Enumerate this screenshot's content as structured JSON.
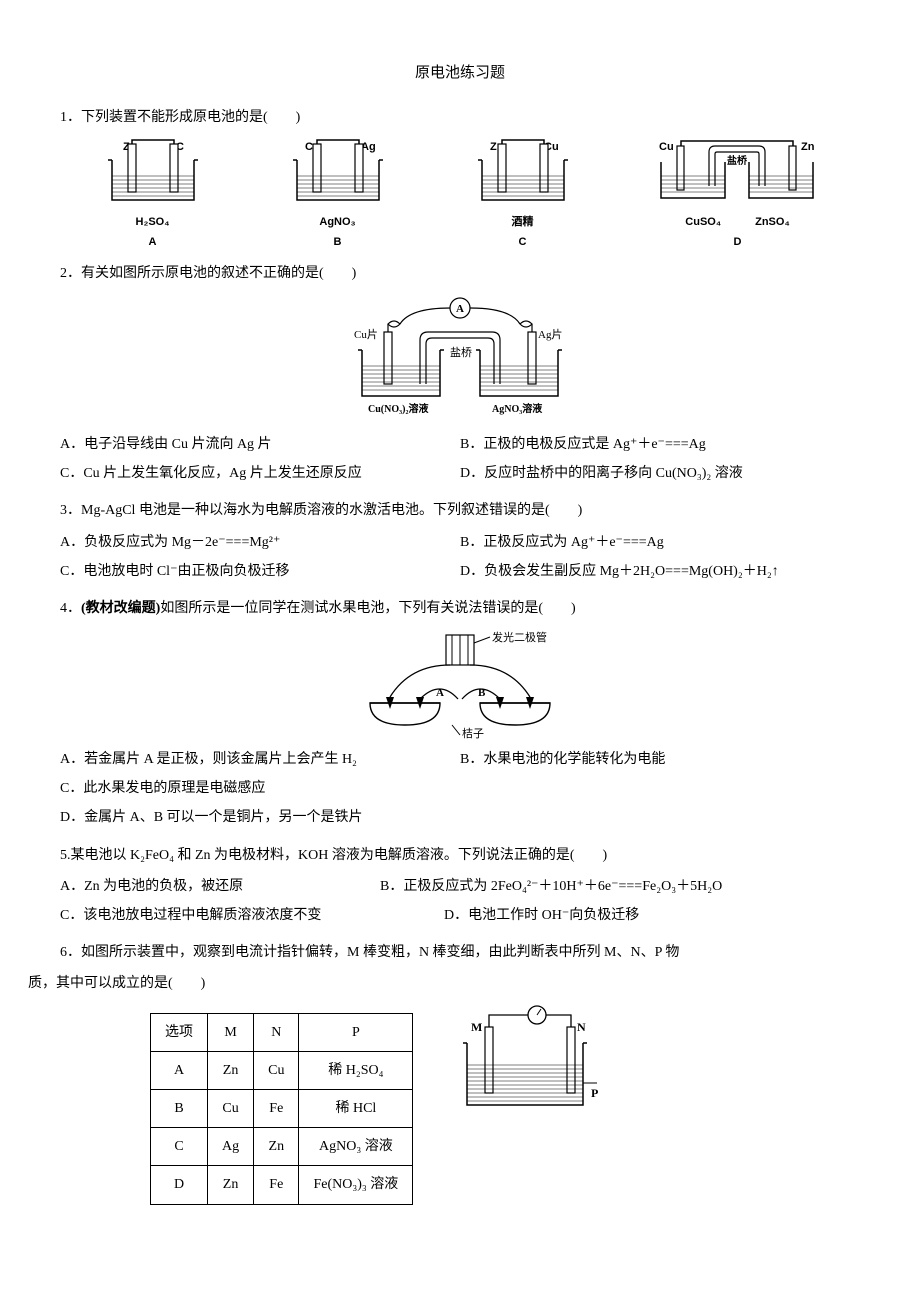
{
  "title": "原电池练习题",
  "q1": {
    "text": "1．下列装置不能形成原电池的是(　　)",
    "diagrams": {
      "a": {
        "left": "Zn",
        "right": "C",
        "solution": "H₂SO₄",
        "label": "A"
      },
      "b": {
        "left": "Cu",
        "right": "Ag",
        "solution": "AgNO₃",
        "label": "B"
      },
      "c": {
        "left": "Zn",
        "right": "Cu",
        "solution": "酒精",
        "label": "C"
      },
      "d": {
        "left_el": "Cu",
        "right_el": "Zn",
        "bridge": "盐桥",
        "left_sol": "CuSO₄",
        "right_sol": "ZnSO₄",
        "label": "D"
      }
    }
  },
  "q2": {
    "text": "2．有关如图所示原电池的叙述不正确的是(　　)",
    "diagram": {
      "meter": "A",
      "left_el": "Cu片",
      "right_el": "Ag片",
      "bridge": "盐桥",
      "left_sol": "Cu(NO₃)₂溶液",
      "right_sol": "AgNO₃溶液"
    },
    "a": "A．电子沿导线由 Cu 片流向 Ag 片",
    "b": "B．正极的电极反应式是 Ag⁺＋e⁻===Ag",
    "c": "C．Cu 片上发生氧化反应，Ag 片上发生还原反应",
    "d": "D．反应时盐桥中的阳离子移向 Cu(NO₃)₂ 溶液"
  },
  "q3": {
    "text": "3．Mg-AgCl 电池是一种以海水为电解质溶液的水激活电池。下列叙述错误的是(　　)",
    "a": "A．负极反应式为 Mg－2e⁻===Mg²⁺",
    "b": "B．正极反应式为 Ag⁺＋e⁻===Ag",
    "c": "C．电池放电时 Cl⁻由正极向负极迁移",
    "d": "D．负极会发生副反应 Mg＋2H₂O===Mg(OH)₂＋H₂↑"
  },
  "q4": {
    "prefix": "4．",
    "note": "(教材改编题)",
    "text": "如图所示是一位同学在测试水果电池，下列有关说法错误的是(　　)",
    "diagram": {
      "led": "发光二极管",
      "a": "A",
      "b": "B",
      "fruit": "桔子"
    },
    "a": "A．若金属片 A 是正极，则该金属片上会产生 H₂",
    "b": "B．水果电池的化学能转化为电能",
    "c": "C．此水果发电的原理是电磁感应",
    "d": "D．金属片 A、B 可以一个是铜片，另一个是铁片"
  },
  "q5": {
    "text": "5.某电池以 K₂FeO₄ 和 Zn 为电极材料，KOH 溶液为电解质溶液。下列说法正确的是(　　)",
    "a": "A．Zn 为电池的负极，被还原",
    "b": "B．正极反应式为 2FeO₄²⁻＋10H⁺＋6e⁻===Fe₂O₃＋5H₂O",
    "c": "C．该电池放电过程中电解质溶液浓度不变",
    "d": "D．电池工作时 OH⁻向负极迁移"
  },
  "q6": {
    "text1": "6．如图所示装置中，观察到电流计指针偏转，M 棒变粗，N 棒变细，由此判断表中所列 M、N、P 物",
    "text2": "质，其中可以成立的是(　　)",
    "diagram": {
      "m": "M",
      "n": "N",
      "p": "P"
    },
    "table": {
      "headers": [
        "选项",
        "M",
        "N",
        "P"
      ],
      "rows": [
        [
          "A",
          "Zn",
          "Cu",
          "稀 H₂SO₄"
        ],
        [
          "B",
          "Cu",
          "Fe",
          "稀 HCl"
        ],
        [
          "C",
          "Ag",
          "Zn",
          "AgNO₃ 溶液"
        ],
        [
          "D",
          "Zn",
          "Fe",
          "Fe(NO₃)₃ 溶液"
        ]
      ]
    }
  },
  "colors": {
    "stroke": "#000000",
    "fill_liquid": "#ffffff",
    "bg": "#ffffff"
  }
}
